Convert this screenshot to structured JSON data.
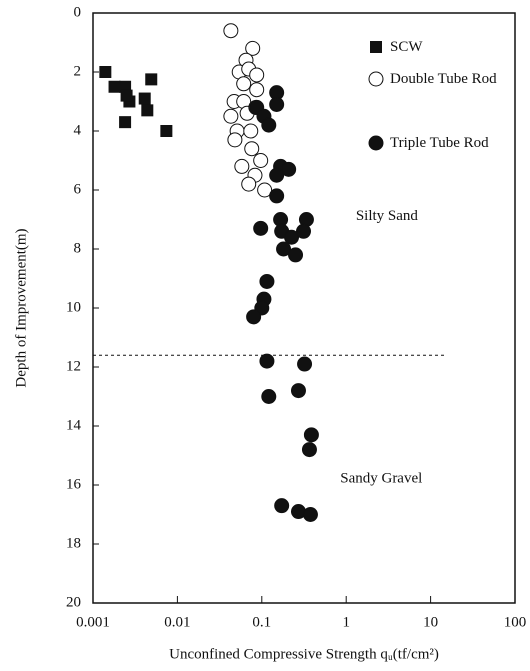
{
  "chart_data": {
    "type": "scatter",
    "xlabel": "Unconfined Compressive Strength qᵤ(tf/cm²)",
    "ylabel": "Depth of Improvement(m)",
    "xscale": "log",
    "yinverted": true,
    "xlim": [
      0.001,
      100
    ],
    "xticks": [
      0.001,
      0.01,
      0.1,
      1,
      10,
      100
    ],
    "ylim": [
      0,
      20
    ],
    "yticks": [
      0,
      2,
      4,
      6,
      8,
      10,
      12,
      14,
      16,
      18,
      20
    ],
    "legend": "upper right",
    "annotations": [
      {
        "text": "Silty Sand",
        "x": 1.3,
        "y": 6.9
      },
      {
        "text": "Sandy Gravel",
        "x": 0.85,
        "y": 15.8
      }
    ],
    "boundary_depth": 11.6,
    "series": [
      {
        "name": "SCW",
        "marker": "square",
        "color": "#111",
        "x": [
          0.0014,
          0.0018,
          0.0024,
          0.0027,
          0.0025,
          0.0024,
          0.0041,
          0.0044,
          0.0049,
          0.0074
        ],
        "y": [
          2.0,
          2.5,
          2.5,
          3.0,
          2.8,
          3.7,
          2.9,
          3.3,
          2.25,
          4.0
        ]
      },
      {
        "name": "Double Tube Rod",
        "marker": "open-circle",
        "color": "#111",
        "x": [
          0.043,
          0.078,
          0.065,
          0.054,
          0.07,
          0.087,
          0.061,
          0.087,
          0.047,
          0.061,
          0.043,
          0.067,
          0.051,
          0.074,
          0.048,
          0.076,
          0.058,
          0.083,
          0.07,
          0.108,
          0.097,
          0.085
        ],
        "y": [
          0.6,
          1.2,
          1.6,
          2.0,
          1.9,
          2.1,
          2.4,
          2.6,
          3.0,
          3.0,
          3.5,
          3.4,
          4.0,
          4.0,
          4.3,
          4.6,
          5.2,
          5.5,
          5.8,
          6.0,
          5.0,
          3.2
        ]
      },
      {
        "name": "Triple Tube Rod",
        "marker": "filled-circle",
        "color": "#111",
        "x": [
          0.15,
          0.15,
          0.087,
          0.106,
          0.121,
          0.167,
          0.208,
          0.15,
          0.15,
          0.167,
          0.338,
          0.172,
          0.225,
          0.312,
          0.097,
          0.181,
          0.251,
          0.115,
          0.106,
          0.1,
          0.08,
          0.115,
          0.321,
          0.121,
          0.272,
          0.387,
          0.367,
          0.172,
          0.272,
          0.377
        ],
        "y": [
          2.7,
          3.1,
          3.2,
          3.5,
          3.8,
          5.2,
          5.3,
          5.5,
          6.2,
          7.0,
          7.0,
          7.4,
          7.6,
          7.4,
          7.3,
          8.0,
          8.2,
          9.1,
          9.7,
          10.0,
          10.3,
          11.8,
          11.9,
          13.0,
          12.8,
          14.3,
          14.8,
          16.7,
          16.9,
          17.0
        ]
      }
    ]
  }
}
